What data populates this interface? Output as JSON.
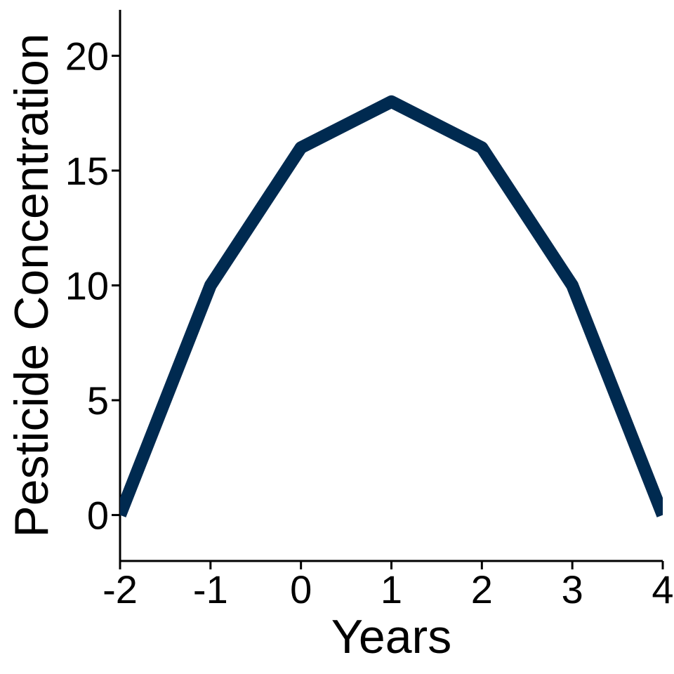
{
  "chart_data": {
    "type": "line",
    "title": "",
    "xlabel": "Years",
    "ylabel": "Pesticide Concentration",
    "x": [
      -2,
      -1,
      0,
      1,
      2,
      3,
      4
    ],
    "series": [
      {
        "values": [
          0,
          10,
          16,
          18,
          16,
          10,
          0
        ]
      }
    ],
    "xlim": [
      -2,
      4
    ],
    "ylim": [
      -2,
      22
    ],
    "xticks": [
      -2,
      -1,
      0,
      1,
      2,
      3,
      4
    ],
    "yticks": [
      0,
      5,
      10,
      15,
      20
    ],
    "xtick_labels": [
      "-2",
      "-1",
      "0",
      "1",
      "2",
      "3",
      "4"
    ],
    "ytick_labels": [
      "0",
      "5",
      "10",
      "15",
      "20"
    ],
    "grid": false,
    "legend": "none",
    "line_color": "#002A50"
  }
}
